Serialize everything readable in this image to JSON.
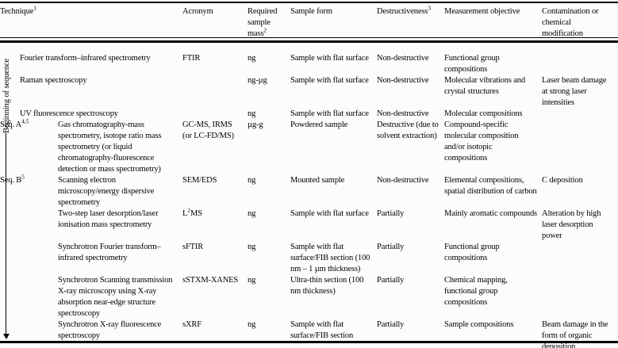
{
  "page": {
    "background_color": "#fcfcfc",
    "rule_color": "#000000",
    "text_color": "#000000"
  },
  "sequence_axis": {
    "label": "Beginning of sequence"
  },
  "table": {
    "headers": [
      {
        "key": "technique",
        "label": "Technique^{1}"
      },
      {
        "key": "acronym",
        "label": "Acronym"
      },
      {
        "key": "mass",
        "label": "Required sample mass^{2}"
      },
      {
        "key": "form",
        "label": "Sample form"
      },
      {
        "key": "destructiveness",
        "label": "Destructiveness^{3}"
      },
      {
        "key": "objective",
        "label": "Measurement objective"
      },
      {
        "key": "contamination",
        "label": "Contamination or chemical modification"
      }
    ],
    "rows": [
      {
        "in_sequence": false,
        "seq_label": "",
        "technique": "Fourier transform–infrared spectrometry",
        "acronym": "FTIR",
        "mass": "ng",
        "form": "Sample with flat surface",
        "destructiveness": "Non-destructive",
        "objective": "Functional group compositions",
        "contamination": ""
      },
      {
        "in_sequence": false,
        "seq_label": "",
        "technique": "Raman spectroscopy",
        "acronym": "",
        "mass": "ng-µg",
        "form": "Sample with flat surface",
        "destructiveness": "Non-destructive",
        "objective": "Molecular vibrations and crystal structures",
        "contamination": "Laser beam damage at strong laser intensities"
      },
      {
        "in_sequence": false,
        "seq_label": "",
        "technique": "UV fluorescence spectroscopy",
        "acronym": "",
        "mass": "ng",
        "form": "Sample with flat surface",
        "destructiveness": "Non-destructive",
        "objective": "Molecular compositions",
        "contamination": ""
      },
      {
        "in_sequence": true,
        "seq_label": "Seq. A^{4,5}",
        "technique": "Gas chromatography-mass spectrometry, isotope ratio mass spectrometry (or liquid chromatography-fluorescence detection or mass spectrometry)",
        "acronym": "GC-MS, IRMS (or LC-FD/MS)",
        "mass": "µg-g",
        "form": "Powdered sample",
        "destructiveness": "Destructive (due to solvent extraction)",
        "objective": "Compound-specific molecular composition and/or isotopic compositions",
        "contamination": ""
      },
      {
        "in_sequence": true,
        "seq_label": "Seq. B^{5}",
        "technique": "Scanning electron microscopy/energy dispersive spectrometry",
        "acronym": "SEM/EDS",
        "mass": "ng",
        "form": "Mounted sample",
        "destructiveness": "Non-destructive",
        "objective": "Elemental compositions, spatial distribution of carbon",
        "contamination": "C deposition"
      },
      {
        "in_sequence": true,
        "seq_label": "",
        "technique": "Two-step laser desorption/laser ionisation mass spectrometry",
        "acronym": "L^{2}MS",
        "mass": "ng",
        "form": "Sample with flat surface",
        "destructiveness": "Partially",
        "objective": "Mainly aromatic compounds",
        "contamination": "Alteration by high laser desorption power"
      },
      {
        "in_sequence": true,
        "seq_label": "",
        "technique": "Synchrotron Fourier transform–infrared spectrometry",
        "acronym": "sFTIR",
        "mass": "ng",
        "form": "Sample with flat surface/FIB section (100 nm – 1 µm thickness)",
        "destructiveness": "Partially",
        "objective": "Functional group compositions",
        "contamination": ""
      },
      {
        "in_sequence": true,
        "seq_label": "",
        "technique": "Synchrotron Scanning transmission X-ray microscopy using X-ray absorption near-edge structure spectroscopy",
        "acronym": "sSTXM-XANES",
        "mass": "ng",
        "form": "Ultra-thin section (100 nm thickness)",
        "destructiveness": "Partially",
        "objective": "Chemical mapping, functional group compositions",
        "contamination": ""
      },
      {
        "in_sequence": true,
        "seq_label": "",
        "technique": "Synchrotron X-ray fluorescence spectroscopy",
        "acronym": "sXRF",
        "mass": "ng",
        "form": "Sample with flat surface/FIB section",
        "destructiveness": "Partially",
        "objective": "Sample compositions",
        "contamination": "Beam damage in the form of organic deposition"
      }
    ]
  }
}
